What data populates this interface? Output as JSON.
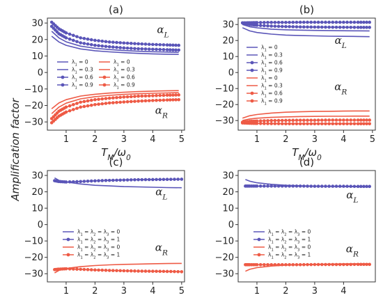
{
  "figure": {
    "ylabel": "Amplification factor",
    "xlabel": "T_M/ω_0"
  },
  "colors": {
    "blue": "#5a55b8",
    "red": "#ee5a45"
  },
  "chart_data": [
    {
      "panel": "(a)",
      "type": "line",
      "xlim": [
        0.35,
        5.1
      ],
      "ylim": [
        -35,
        33
      ],
      "xticks": [
        1,
        2,
        3,
        4,
        5
      ],
      "yticks": [
        -30,
        -20,
        -10,
        0,
        10,
        20,
        30
      ],
      "annotations": [
        {
          "text": "α_L",
          "x": 4.35,
          "y": 24
        },
        {
          "text": "α_R",
          "x": 4.3,
          "y": -25
        }
      ],
      "legend": [
        {
          "label": "λ_1 = 0",
          "color": "blue",
          "marker": false
        },
        {
          "label": "λ_1 = 0.3",
          "color": "blue",
          "marker": false
        },
        {
          "label": "λ_1 = 0.6",
          "color": "blue",
          "marker": true
        },
        {
          "label": "λ_1 = 0.9",
          "color": "blue",
          "marker": true
        },
        {
          "label": "λ_1 = 0",
          "color": "red",
          "marker": false
        },
        {
          "label": "λ_1 = 0.3",
          "color": "red",
          "marker": false
        },
        {
          "label": "λ_1 = 0.6",
          "color": "red",
          "marker": true
        },
        {
          "label": "λ_1 = 0.9",
          "color": "red",
          "marker": true
        }
      ],
      "series": [
        {
          "color": "blue",
          "marker": false,
          "x": [
            0.5,
            0.75,
            1,
            1.5,
            2,
            2.5,
            3,
            3.5,
            4,
            4.5,
            4.9
          ],
          "y": [
            22,
            18.5,
            16.5,
            14.3,
            13.2,
            12.5,
            12,
            11.6,
            11.3,
            11.1,
            11
          ]
        },
        {
          "color": "blue",
          "marker": false,
          "x": [
            0.5,
            0.75,
            1,
            1.5,
            2,
            2.5,
            3,
            3.5,
            4,
            4.5,
            4.9
          ],
          "y": [
            25,
            21,
            18.6,
            16,
            14.7,
            13.9,
            13.3,
            12.9,
            12.6,
            12.4,
            12.2
          ]
        },
        {
          "color": "blue",
          "marker": true,
          "x": [
            0.5,
            0.75,
            1,
            1.5,
            2,
            2.5,
            3,
            3.5,
            4,
            4.5,
            4.9
          ],
          "y": [
            28,
            23.5,
            21,
            18,
            16.5,
            15.6,
            14.9,
            14.4,
            14.1,
            13.8,
            13.6
          ]
        },
        {
          "color": "blue",
          "marker": true,
          "x": [
            0.5,
            0.75,
            1,
            1.5,
            2,
            2.5,
            3,
            3.5,
            4,
            4.5,
            4.9
          ],
          "y": [
            30.5,
            26.5,
            24,
            21,
            19.5,
            18.5,
            17.9,
            17.4,
            17,
            16.7,
            16.5
          ]
        },
        {
          "color": "red",
          "marker": false,
          "x": [
            0.5,
            0.75,
            1,
            1.5,
            2,
            2.5,
            3,
            3.5,
            4,
            4.5,
            4.9
          ],
          "y": [
            -22,
            -18.5,
            -16.5,
            -14.3,
            -13.2,
            -12.5,
            -12,
            -11.6,
            -11.3,
            -11.1,
            -11
          ]
        },
        {
          "color": "red",
          "marker": false,
          "x": [
            0.5,
            0.75,
            1,
            1.5,
            2,
            2.5,
            3,
            3.5,
            4,
            4.5,
            4.9
          ],
          "y": [
            -25,
            -21,
            -18.6,
            -16,
            -14.7,
            -13.9,
            -13.3,
            -12.9,
            -12.6,
            -12.4,
            -12.2
          ]
        },
        {
          "color": "red",
          "marker": true,
          "x": [
            0.5,
            0.75,
            1,
            1.5,
            2,
            2.5,
            3,
            3.5,
            4,
            4.5,
            4.9
          ],
          "y": [
            -28,
            -23.5,
            -21,
            -18,
            -16.5,
            -15.6,
            -14.9,
            -14.4,
            -14.1,
            -13.8,
            -13.6
          ]
        },
        {
          "color": "red",
          "marker": true,
          "x": [
            0.5,
            0.75,
            1,
            1.5,
            2,
            2.5,
            3,
            3.5,
            4,
            4.5,
            4.9
          ],
          "y": [
            -30.5,
            -26.5,
            -24,
            -21,
            -19.5,
            -18.5,
            -17.9,
            -17.4,
            -17,
            -16.7,
            -16.5
          ]
        }
      ]
    },
    {
      "panel": "(b)",
      "type": "line",
      "xlim": [
        0.35,
        5.1
      ],
      "ylim": [
        -36,
        34
      ],
      "xticks": [
        1,
        2,
        3,
        4,
        5
      ],
      "yticks": [
        -30,
        -20,
        -10,
        0,
        10,
        20,
        30
      ],
      "annotations": [
        {
          "text": "α_L",
          "x": 3.9,
          "y": 18
        },
        {
          "text": "α_R",
          "x": 3.9,
          "y": -11
        }
      ],
      "legend": [
        {
          "label": "λ_1 = 0",
          "color": "blue",
          "marker": false
        },
        {
          "label": "λ_1 = 0.3",
          "color": "blue",
          "marker": false
        },
        {
          "label": "λ_1 = 0.6",
          "color": "blue",
          "marker": true
        },
        {
          "label": "λ_1 = 0.9",
          "color": "blue",
          "marker": true
        },
        {
          "label": "λ_1 = 0",
          "color": "red",
          "marker": false
        },
        {
          "label": "λ_1 = 0.3",
          "color": "red",
          "marker": false
        },
        {
          "label": "λ_1 = 0.6",
          "color": "red",
          "marker": true
        },
        {
          "label": "λ_1 = 0.9",
          "color": "red",
          "marker": true
        }
      ],
      "series": [
        {
          "color": "blue",
          "marker": false,
          "x": [
            0.5,
            0.75,
            1,
            1.5,
            2,
            2.5,
            3,
            3.5,
            4,
            4.5,
            4.9
          ],
          "y": [
            28,
            26,
            25,
            24,
            23.4,
            23.1,
            22.9,
            22.7,
            22.6,
            22.5,
            22.4
          ]
        },
        {
          "color": "blue",
          "marker": false,
          "x": [
            0.5,
            0.75,
            1,
            1.5,
            2,
            2.5,
            3,
            3.5,
            4,
            4.5,
            4.9
          ],
          "y": [
            30,
            28.6,
            27.9,
            27.1,
            26.7,
            26.5,
            26.3,
            26.2,
            26.1,
            26.05,
            26
          ]
        },
        {
          "color": "blue",
          "marker": true,
          "x": [
            0.5,
            0.75,
            1,
            1.5,
            2,
            2.5,
            3,
            3.5,
            4,
            4.5,
            4.9
          ],
          "y": [
            31,
            30,
            29.5,
            29,
            28.7,
            28.5,
            28.4,
            28.3,
            28.25,
            28.2,
            28.2
          ]
        },
        {
          "color": "blue",
          "marker": true,
          "x": [
            0.5,
            0.75,
            1,
            1.5,
            2,
            2.5,
            3,
            3.5,
            4,
            4.5,
            4.9
          ],
          "y": [
            31,
            31.1,
            31.2,
            31.3,
            31.3,
            31.4,
            31.4,
            31.4,
            31.4,
            31.4,
            31.4
          ]
        },
        {
          "color": "red",
          "marker": false,
          "x": [
            0.5,
            0.75,
            1,
            1.5,
            2,
            2.5,
            3,
            3.5,
            4,
            4.5,
            4.9
          ],
          "y": [
            -28.5,
            -27,
            -26.2,
            -25.3,
            -24.8,
            -24.5,
            -24.3,
            -24.2,
            -24.1,
            -24,
            -24
          ]
        },
        {
          "color": "red",
          "marker": false,
          "x": [
            0.5,
            0.75,
            1,
            1.5,
            2,
            2.5,
            3,
            3.5,
            4,
            4.5,
            4.9
          ],
          "y": [
            -30,
            -29,
            -28.5,
            -28,
            -27.7,
            -27.5,
            -27.4,
            -27.3,
            -27.3,
            -27.2,
            -27.2
          ]
        },
        {
          "color": "red",
          "marker": true,
          "x": [
            0.5,
            0.75,
            1,
            1.5,
            2,
            2.5,
            3,
            3.5,
            4,
            4.5,
            4.9
          ],
          "y": [
            -31,
            -30.5,
            -30.3,
            -30,
            -29.9,
            -29.8,
            -29.8,
            -29.7,
            -29.7,
            -29.7,
            -29.7
          ]
        },
        {
          "color": "red",
          "marker": true,
          "x": [
            0.5,
            0.75,
            1,
            1.5,
            2,
            2.5,
            3,
            3.5,
            4,
            4.5,
            4.9
          ],
          "y": [
            -31.5,
            -31.7,
            -31.8,
            -31.9,
            -32,
            -32,
            -32,
            -32,
            -32,
            -32,
            -32
          ]
        }
      ]
    },
    {
      "panel": "(c)",
      "type": "line",
      "xlim": [
        0.35,
        5.1
      ],
      "ylim": [
        -35,
        33
      ],
      "xticks": [
        1,
        2,
        3,
        4,
        5
      ],
      "yticks": [
        -30,
        -20,
        -10,
        0,
        10,
        20,
        30
      ],
      "annotations": [
        {
          "text": "α_L",
          "x": 4.3,
          "y": 18
        },
        {
          "text": "α_R",
          "x": 4.3,
          "y": -16
        }
      ],
      "legend": [
        {
          "label": "λ_1 = λ_2 = λ_3 = 0",
          "color": "blue",
          "marker": false
        },
        {
          "label": "λ_1 = λ_2 = λ_3 = 1",
          "color": "blue",
          "marker": true
        },
        {
          "label": "λ_1 = λ_2 = λ_3 = 0",
          "color": "red",
          "marker": false
        },
        {
          "label": "λ_1 = λ_2 = λ_3 = 1",
          "color": "red",
          "marker": true
        }
      ],
      "series": [
        {
          "color": "blue",
          "marker": false,
          "x": [
            0.6,
            0.75,
            1,
            1.5,
            2,
            2.5,
            3,
            3.5,
            4,
            4.5,
            5
          ],
          "y": [
            28.5,
            27,
            26,
            24.8,
            24,
            23.6,
            23.2,
            23,
            22.8,
            22.6,
            22.5
          ]
        },
        {
          "color": "blue",
          "marker": true,
          "x": [
            0.6,
            0.75,
            1,
            1.5,
            2,
            2.5,
            3,
            3.5,
            4,
            4.5,
            5
          ],
          "y": [
            26.8,
            26.3,
            26,
            26.3,
            26.7,
            27,
            27.2,
            27.4,
            27.5,
            27.6,
            27.7
          ]
        },
        {
          "color": "red",
          "marker": false,
          "x": [
            0.6,
            0.75,
            1,
            1.5,
            2,
            2.5,
            3,
            3.5,
            4,
            4.5,
            5
          ],
          "y": [
            -29.5,
            -28,
            -26.8,
            -25.7,
            -25,
            -24.6,
            -24.3,
            -24.1,
            -23.9,
            -23.8,
            -23.7
          ]
        },
        {
          "color": "red",
          "marker": true,
          "x": [
            0.6,
            0.75,
            1,
            1.5,
            2,
            2.5,
            3,
            3.5,
            4,
            4.5,
            5
          ],
          "y": [
            -27.5,
            -27.2,
            -27,
            -27.3,
            -27.7,
            -28,
            -28.2,
            -28.4,
            -28.5,
            -28.6,
            -28.8
          ]
        }
      ]
    },
    {
      "panel": "(d)",
      "type": "line",
      "xlim": [
        0.35,
        5.1
      ],
      "ylim": [
        -35,
        33
      ],
      "xticks": [
        1,
        2,
        3,
        4
      ],
      "yticks": [
        -30,
        -20,
        -10,
        0,
        10,
        20,
        30
      ],
      "annotations": [
        {
          "text": "α_L",
          "x": 4.3,
          "y": 16
        },
        {
          "text": "α_R",
          "x": 4.3,
          "y": -17
        }
      ],
      "legend": [
        {
          "label": "λ_1 = λ_2 = λ_3 = 0",
          "color": "blue",
          "marker": false
        },
        {
          "label": "λ_1 = λ_2 = λ_3 = 1",
          "color": "blue",
          "marker": true
        },
        {
          "label": "λ_1 = λ_2 = λ_3 = 0",
          "color": "red",
          "marker": false
        },
        {
          "label": "λ_1 = λ_2 = λ_3 = 1",
          "color": "red",
          "marker": true
        }
      ],
      "series": [
        {
          "color": "blue",
          "marker": false,
          "x": [
            0.6,
            0.75,
            1,
            1.5,
            2,
            2.5,
            3,
            3.5,
            4,
            4.5,
            4.9
          ],
          "y": [
            27.5,
            26.5,
            25.5,
            24.6,
            24,
            23.7,
            23.5,
            23.3,
            23.2,
            23.1,
            23
          ]
        },
        {
          "color": "blue",
          "marker": true,
          "x": [
            0.6,
            0.75,
            1,
            1.5,
            2,
            2.5,
            3,
            3.5,
            4,
            4.5,
            4.9
          ],
          "y": [
            23.5,
            23.5,
            23.5,
            23.5,
            23.5,
            23.5,
            23.4,
            23.4,
            23.4,
            23.3,
            23.3
          ]
        },
        {
          "color": "red",
          "marker": false,
          "x": [
            0.6,
            0.75,
            1,
            1.5,
            2,
            2.5,
            3,
            3.5,
            4,
            4.5,
            4.9
          ],
          "y": [
            -28.5,
            -27.3,
            -26.3,
            -25.3,
            -24.8,
            -24.5,
            -24.3,
            -24.1,
            -24,
            -23.9,
            -23.9
          ]
        },
        {
          "color": "red",
          "marker": true,
          "x": [
            0.6,
            0.75,
            1,
            1.5,
            2,
            2.5,
            3,
            3.5,
            4,
            4.5,
            4.9
          ],
          "y": [
            -24.5,
            -24.5,
            -24.5,
            -24.5,
            -24.5,
            -24.5,
            -24.4,
            -24.4,
            -24.4,
            -24.3,
            -24.3
          ]
        }
      ]
    }
  ]
}
